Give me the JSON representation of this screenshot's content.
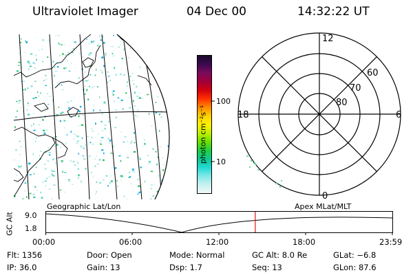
{
  "header": {
    "title": "Ultraviolet Imager",
    "date": "04 Dec 00",
    "time": "14:32:22 UT"
  },
  "colorbar": {
    "unit_label": "photon cm⁻²s⁻¹",
    "ticks": [
      "100",
      "10"
    ],
    "colors": [
      "#1a0a2a",
      "#3a0a50",
      "#7a0a5a",
      "#a0003a",
      "#d00010",
      "#ff3000",
      "#ff8a00",
      "#ffd000",
      "#fff200",
      "#c0f000",
      "#70e000",
      "#20d040",
      "#10c890",
      "#20d8d0",
      "#80e8e8",
      "#c8f0f0",
      "#f0f8f8"
    ]
  },
  "polar": {
    "mlt_labels": {
      "top": "12",
      "right": "6",
      "bottom": "0",
      "left": "18"
    },
    "lat_labels": [
      "60",
      "70",
      "80"
    ]
  },
  "timeline": {
    "left_label": "Geographic Lat/Lon",
    "right_label": "Apex MLat/MLT",
    "axis_title": "GC Alt",
    "y_max": "9.0",
    "y_min": "1.8",
    "time_ticks": [
      "00:00",
      "06:00",
      "12:00",
      "18:00",
      "23:59"
    ],
    "current_time_fraction": 0.604,
    "marker_color": "#e01010"
  },
  "footer": {
    "flt": "Flt: 1356",
    "ip": "IP: 36.0",
    "door": "Door: Open",
    "gain": "Gain: 13",
    "mode": "Mode: Normal",
    "dsp": "Dsp:     1.7",
    "gc_alt": "GC Alt: 8.0 Re",
    "seq": "Seq: 13",
    "glat": "GLat:  −6.8",
    "glon": "GLon:  87.6"
  }
}
